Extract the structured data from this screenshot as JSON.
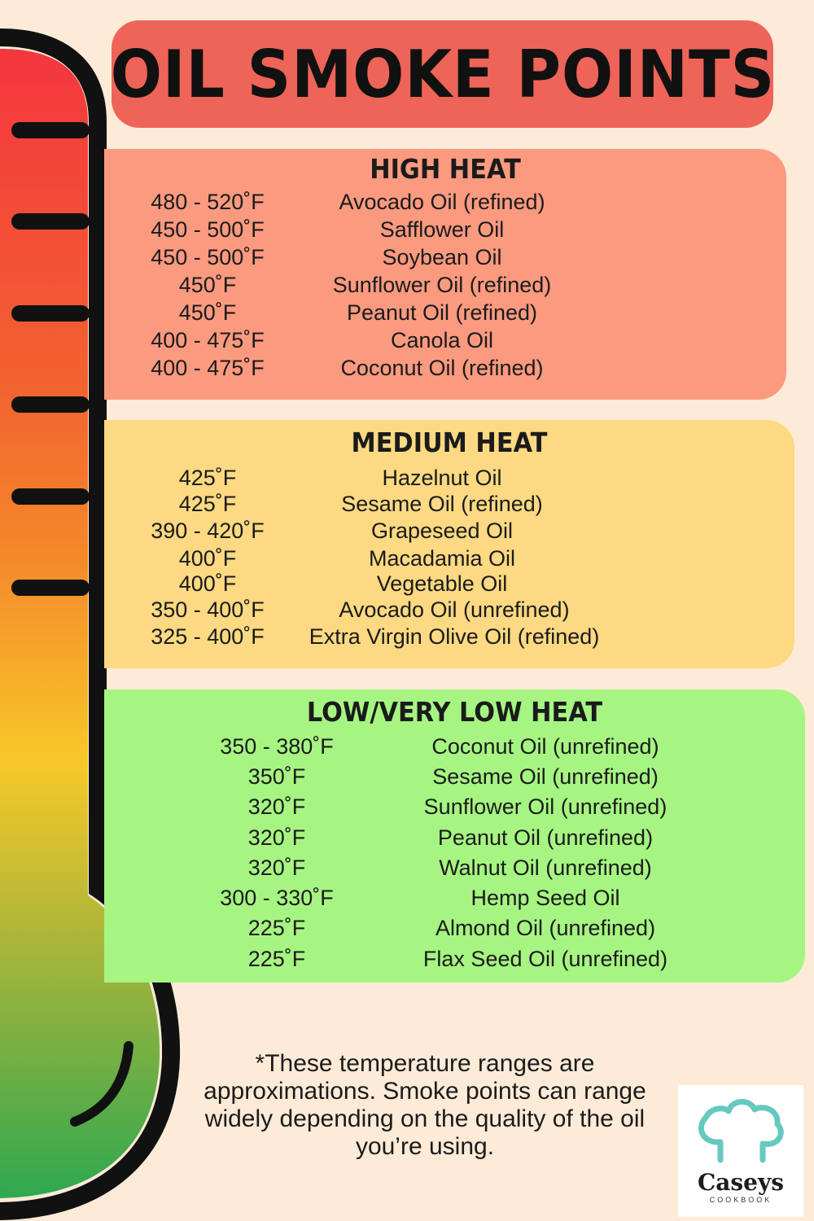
{
  "title": "OIL SMOKE POINTS",
  "sections": {
    "high": {
      "heading": "HIGH HEAT",
      "rows": [
        {
          "temp": "480 - 520˚F",
          "oil": "Avocado Oil (refined)"
        },
        {
          "temp": "450 - 500˚F",
          "oil": "Safflower Oil"
        },
        {
          "temp": "450 - 500˚F",
          "oil": "Soybean Oil"
        },
        {
          "temp": "450˚F",
          "oil": "Sunflower Oil (refined)"
        },
        {
          "temp": "450˚F",
          "oil": "Peanut Oil (refined)"
        },
        {
          "temp": "400 - 475˚F",
          "oil": "Canola Oil"
        },
        {
          "temp": "400 - 475˚F",
          "oil": "Coconut Oil (refined)"
        }
      ]
    },
    "medium": {
      "heading": "MEDIUM HEAT",
      "rows": [
        {
          "temp": "425˚F",
          "oil": "Hazelnut Oil"
        },
        {
          "temp": "425˚F",
          "oil": "Sesame Oil (refined)"
        },
        {
          "temp": "390 - 420˚F",
          "oil": "Grapeseed Oil"
        },
        {
          "temp": "400˚F",
          "oil": "Macadamia Oil"
        },
        {
          "temp": "400˚F",
          "oil": "Vegetable Oil"
        },
        {
          "temp": "350 - 400˚F",
          "oil": "Avocado Oil (unrefined)"
        },
        {
          "temp": "325 - 400˚F",
          "oil": "Extra Virgin Olive Oil (refined)"
        }
      ]
    },
    "low": {
      "heading": "LOW/VERY LOW HEAT",
      "rows": [
        {
          "temp": "350 - 380˚F",
          "oil": "Coconut Oil (unrefined)"
        },
        {
          "temp": "350˚F",
          "oil": "Sesame Oil (unrefined)"
        },
        {
          "temp": "320˚F",
          "oil": "Sunflower Oil (unrefined)"
        },
        {
          "temp": "320˚F",
          "oil": "Peanut Oil (unrefined)"
        },
        {
          "temp": "320˚F",
          "oil": "Walnut Oil (unrefined)"
        },
        {
          "temp": "300 - 330˚F",
          "oil": "Hemp Seed Oil"
        },
        {
          "temp": "225˚F",
          "oil": "Almond Oil (unrefined)"
        },
        {
          "temp": "225˚F",
          "oil": "Flax Seed Oil (unrefined)"
        }
      ]
    }
  },
  "footnote": "*These temperature ranges are approximations. Smoke points can range widely depending on the quality of the oil you’re using.",
  "logo": {
    "name": "Caseys",
    "sub": "COOKBOOK",
    "icon": "chef-hat-icon"
  },
  "colors": {
    "background": "#fdebd8",
    "title": "#ef6458",
    "high": "#fc9a80",
    "medium": "#fcd982",
    "low": "#a6f582",
    "thermo_top": "#f4363f",
    "thermo_mid": "#f5c62a",
    "thermo_bottom": "#2fa84f"
  }
}
